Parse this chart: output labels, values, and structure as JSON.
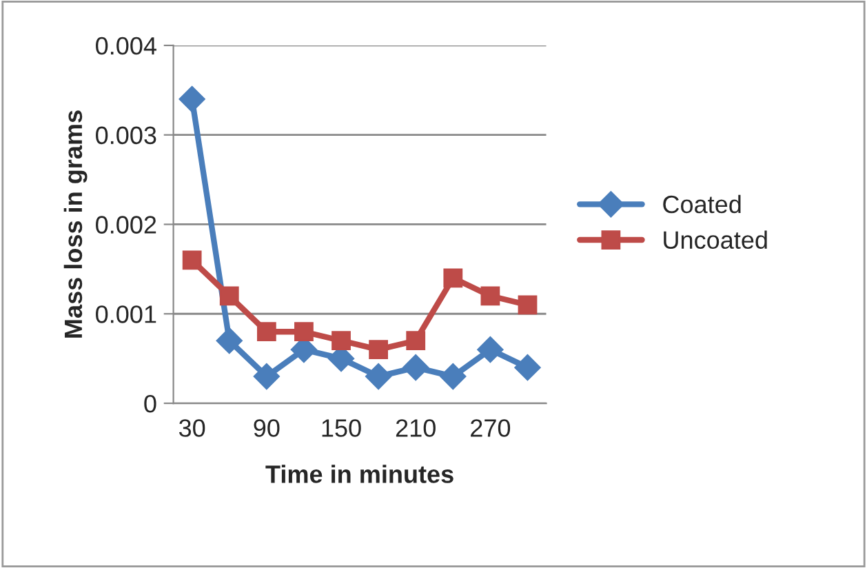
{
  "chart_data": {
    "type": "line",
    "xlabel": "Time in minutes",
    "ylabel": "Mass loss in grams",
    "categories": [
      "30",
      null,
      "90",
      null,
      "150",
      null,
      "210",
      null,
      "270",
      null
    ],
    "series": [
      {
        "name": "Coated",
        "color": "#4a7ebb",
        "marker": "diamond",
        "values": [
          0.0034,
          0.0007,
          0.0003,
          0.0006,
          0.0005,
          0.0003,
          0.0004,
          0.0003,
          0.0006,
          0.0004
        ]
      },
      {
        "name": "Uncoated",
        "color": "#be4b48",
        "marker": "square",
        "values": [
          0.0016,
          0.0012,
          0.0008,
          0.0008,
          0.0007,
          0.0006,
          0.0007,
          0.0014,
          0.0012,
          0.0011
        ]
      }
    ],
    "ylim": [
      0,
      0.004
    ],
    "yticks": [
      {
        "value": 0,
        "label": "0"
      },
      {
        "value": 0.001,
        "label": "0.001"
      },
      {
        "value": 0.002,
        "label": "0.002"
      },
      {
        "value": 0.003,
        "label": "0.003"
      },
      {
        "value": 0.004,
        "label": "0.004"
      }
    ],
    "grid": "y",
    "legend": "right",
    "line_style": "solid"
  }
}
